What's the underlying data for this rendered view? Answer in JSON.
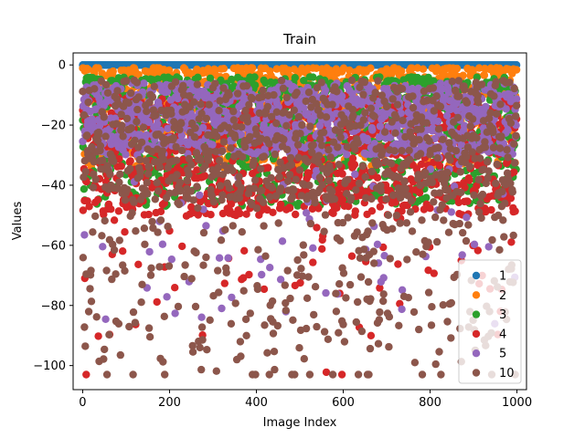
{
  "chart_data": {
    "type": "scatter",
    "title": "Train",
    "xlabel": "Image Index",
    "ylabel": "Values",
    "xlim": [
      -22,
      1022
    ],
    "ylim": [
      -108,
      4
    ],
    "xticks": [
      0,
      200,
      400,
      600,
      800,
      1000
    ],
    "yticks": [
      0,
      -20,
      -40,
      -60,
      -80,
      -100
    ],
    "legend_position": "lower-right",
    "series": [
      {
        "name": "1",
        "color": "#1f77b4",
        "y_range": [
          -1,
          0
        ],
        "constant_value": 0
      },
      {
        "name": "2",
        "color": "#ff7f0e",
        "y_range": [
          -38,
          -1
        ]
      },
      {
        "name": "3",
        "color": "#2ca02c",
        "y_range": [
          -47,
          -4
        ]
      },
      {
        "name": "4",
        "color": "#d62728",
        "y_range": [
          -103,
          -2
        ]
      },
      {
        "name": "5",
        "color": "#9467bd",
        "y_range": [
          -91,
          -3
        ]
      },
      {
        "name": "10",
        "color": "#8c564b",
        "y_range": [
          -103,
          -3
        ]
      }
    ],
    "x_range": [
      0,
      999
    ]
  }
}
